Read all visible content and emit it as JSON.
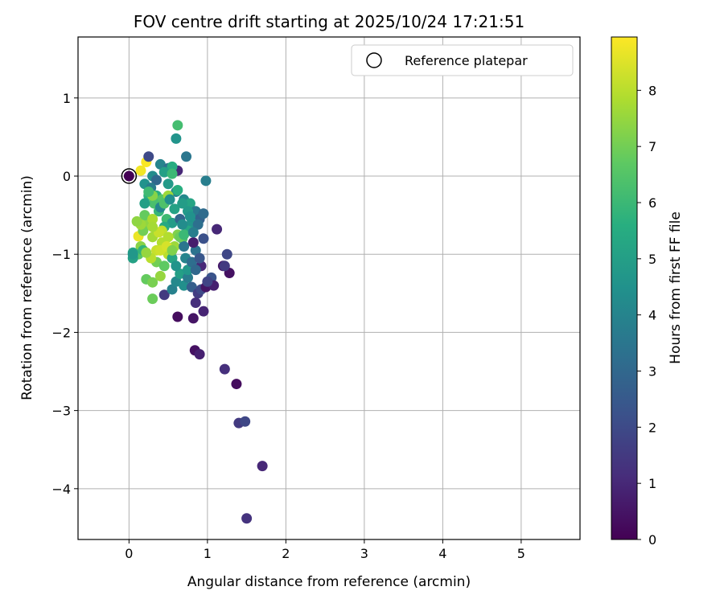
{
  "chart_data": {
    "type": "scatter",
    "title": "FOV centre drift starting at 2025/10/24 17:21:51",
    "xlabel": "Angular distance from reference (arcmin)",
    "ylabel": "Rotation from reference (arcmin)",
    "xlim": [
      -0.65,
      5.75
    ],
    "ylim": [
      -4.65,
      1.78
    ],
    "xticks": [
      0,
      1,
      2,
      3,
      4,
      5
    ],
    "yticks": [
      -4,
      -3,
      -2,
      -1,
      0,
      1
    ],
    "grid": true,
    "legend": {
      "position": "top-right",
      "entries": [
        "Reference platepar"
      ]
    },
    "reference": {
      "x": 0,
      "y": 0,
      "label": "Reference platepar"
    },
    "colorbar": {
      "label": "Hours from first FF file",
      "min": 0,
      "max": 8.95,
      "ticks": [
        0,
        1,
        2,
        3,
        4,
        5,
        6,
        7,
        8
      ],
      "colormap": "viridis"
    },
    "points": [
      [
        0.0,
        0.0,
        0.0
      ],
      [
        0.22,
        0.18,
        8.9
      ],
      [
        0.15,
        0.07,
        8.8
      ],
      [
        0.12,
        -0.77,
        8.7
      ],
      [
        0.62,
        0.65,
        6.2
      ],
      [
        0.6,
        0.48,
        4.6
      ],
      [
        0.25,
        0.25,
        2.0
      ],
      [
        0.73,
        0.25,
        3.5
      ],
      [
        0.98,
        -0.06,
        3.8
      ],
      [
        0.62,
        0.07,
        1.0
      ],
      [
        0.4,
        0.15,
        4.0
      ],
      [
        0.5,
        0.1,
        3.2
      ],
      [
        0.55,
        0.12,
        5.5
      ],
      [
        0.3,
        0.0,
        4.3
      ],
      [
        0.45,
        0.05,
        5.0
      ],
      [
        0.35,
        -0.05,
        3.0
      ],
      [
        0.2,
        -0.1,
        4.5
      ],
      [
        0.28,
        -0.15,
        3.7
      ],
      [
        0.5,
        -0.1,
        4.8
      ],
      [
        0.55,
        0.03,
        6.0
      ],
      [
        0.6,
        -0.2,
        3.9
      ],
      [
        0.7,
        -0.3,
        4.2
      ],
      [
        0.78,
        -0.35,
        5.2
      ],
      [
        0.85,
        -0.45,
        3.6
      ],
      [
        0.9,
        -0.55,
        2.8
      ],
      [
        0.95,
        -0.48,
        3.1
      ],
      [
        0.8,
        -0.6,
        4.6
      ],
      [
        0.75,
        -0.7,
        5.3
      ],
      [
        0.68,
        -0.8,
        6.4
      ],
      [
        0.62,
        -0.75,
        7.2
      ],
      [
        0.58,
        -0.9,
        7.6
      ],
      [
        0.5,
        -1.0,
        8.0
      ],
      [
        0.42,
        -0.85,
        7.9
      ],
      [
        0.35,
        -0.95,
        8.2
      ],
      [
        0.3,
        -0.78,
        7.7
      ],
      [
        0.25,
        -0.6,
        7.4
      ],
      [
        0.2,
        -0.5,
        6.8
      ],
      [
        0.18,
        -0.7,
        7.0
      ],
      [
        0.15,
        -0.9,
        7.3
      ],
      [
        0.12,
        -1.0,
        6.6
      ],
      [
        0.05,
        -0.98,
        5.3
      ],
      [
        0.05,
        -1.05,
        5.1
      ],
      [
        0.05,
        -1.0,
        4.7
      ],
      [
        0.18,
        -0.95,
        5.8
      ],
      [
        0.22,
        -1.32,
        6.8
      ],
      [
        0.3,
        -1.36,
        7.1
      ],
      [
        0.3,
        -1.57,
        6.9
      ],
      [
        0.4,
        -1.28,
        7.5
      ],
      [
        0.45,
        -1.52,
        1.5
      ],
      [
        0.55,
        -1.45,
        3.9
      ],
      [
        0.6,
        -1.35,
        4.2
      ],
      [
        0.65,
        -1.25,
        5.0
      ],
      [
        0.7,
        -1.4,
        4.4
      ],
      [
        0.75,
        -1.3,
        3.7
      ],
      [
        0.8,
        -1.42,
        2.7
      ],
      [
        0.88,
        -1.5,
        1.6
      ],
      [
        0.85,
        -1.62,
        1.2
      ],
      [
        0.92,
        -1.45,
        2.0
      ],
      [
        0.98,
        -1.42,
        0.5
      ],
      [
        1.05,
        -1.3,
        2.3
      ],
      [
        1.08,
        -1.4,
        0.8
      ],
      [
        1.12,
        -0.68,
        1.0
      ],
      [
        1.2,
        -1.15,
        0.6
      ],
      [
        1.25,
        -1.0,
        1.9
      ],
      [
        1.28,
        -1.24,
        0.4
      ],
      [
        1.22,
        -1.15,
        1.5
      ],
      [
        0.95,
        -0.8,
        2.2
      ],
      [
        0.92,
        -1.15,
        1.0
      ],
      [
        0.85,
        -0.95,
        3.4
      ],
      [
        0.82,
        -0.85,
        0.7
      ],
      [
        0.88,
        -0.62,
        3.3
      ],
      [
        0.62,
        -1.8,
        0.3
      ],
      [
        0.82,
        -1.82,
        0.5
      ],
      [
        0.95,
        -1.73,
        0.9
      ],
      [
        0.84,
        -2.23,
        0.4
      ],
      [
        0.9,
        -2.28,
        0.8
      ],
      [
        1.22,
        -2.47,
        1.2
      ],
      [
        1.37,
        -2.66,
        0.3
      ],
      [
        1.4,
        -3.16,
        1.5
      ],
      [
        1.48,
        -3.14,
        1.9
      ],
      [
        1.7,
        -3.71,
        1.0
      ],
      [
        1.5,
        -4.38,
        1.3
      ],
      [
        0.35,
        -0.25,
        5.6
      ],
      [
        0.42,
        -0.3,
        6.5
      ],
      [
        0.38,
        -0.45,
        5.9
      ],
      [
        0.48,
        -0.55,
        6.1
      ],
      [
        0.55,
        -0.6,
        4.9
      ],
      [
        0.45,
        -0.65,
        5.4
      ],
      [
        0.25,
        -0.25,
        5.7
      ],
      [
        0.32,
        -0.35,
        6.3
      ],
      [
        0.4,
        -0.4,
        4.1
      ],
      [
        0.2,
        -0.35,
        5.0
      ],
      [
        0.3,
        -0.55,
        7.8
      ],
      [
        0.42,
        -0.7,
        8.1
      ],
      [
        0.5,
        -0.78,
        7.9
      ],
      [
        0.35,
        -1.1,
        7.0
      ],
      [
        0.45,
        -1.15,
        6.7
      ],
      [
        0.55,
        -1.05,
        5.2
      ],
      [
        0.6,
        -1.15,
        4.6
      ],
      [
        0.72,
        -1.05,
        4.0
      ],
      [
        0.7,
        -0.9,
        3.5
      ],
      [
        0.65,
        -0.55,
        2.9
      ],
      [
        0.75,
        -0.45,
        4.8
      ],
      [
        0.3,
        -0.25,
        7.3
      ],
      [
        0.25,
        -0.2,
        6.1
      ],
      [
        0.5,
        -0.25,
        7.6
      ],
      [
        0.45,
        -0.35,
        6.4
      ],
      [
        0.4,
        -0.95,
        8.3
      ],
      [
        0.28,
        -1.05,
        8.0
      ],
      [
        0.22,
        -0.98,
        7.5
      ],
      [
        0.48,
        -0.9,
        8.4
      ],
      [
        0.38,
        -0.72,
        8.2
      ],
      [
        0.3,
        -0.65,
        7.7
      ],
      [
        0.55,
        -0.95,
        7.2
      ],
      [
        0.65,
        -0.78,
        6.9
      ],
      [
        0.7,
        -0.75,
        6.0
      ],
      [
        0.78,
        -0.52,
        4.5
      ],
      [
        0.82,
        -0.72,
        3.8
      ],
      [
        0.68,
        -0.62,
        4.3
      ],
      [
        0.58,
        -0.42,
        5.1
      ],
      [
        0.52,
        -0.3,
        4.4
      ],
      [
        0.15,
        -0.62,
        7.6
      ],
      [
        0.1,
        -0.58,
        7.4
      ],
      [
        0.62,
        -0.18,
        5.6
      ],
      [
        0.68,
        -0.35,
        4.9
      ],
      [
        0.75,
        -1.2,
        4.7
      ],
      [
        0.8,
        -1.1,
        3.2
      ],
      [
        0.9,
        -1.05,
        2.4
      ],
      [
        1.0,
        -1.35,
        1.8
      ],
      [
        0.85,
        -1.2,
        3.0
      ]
    ]
  }
}
